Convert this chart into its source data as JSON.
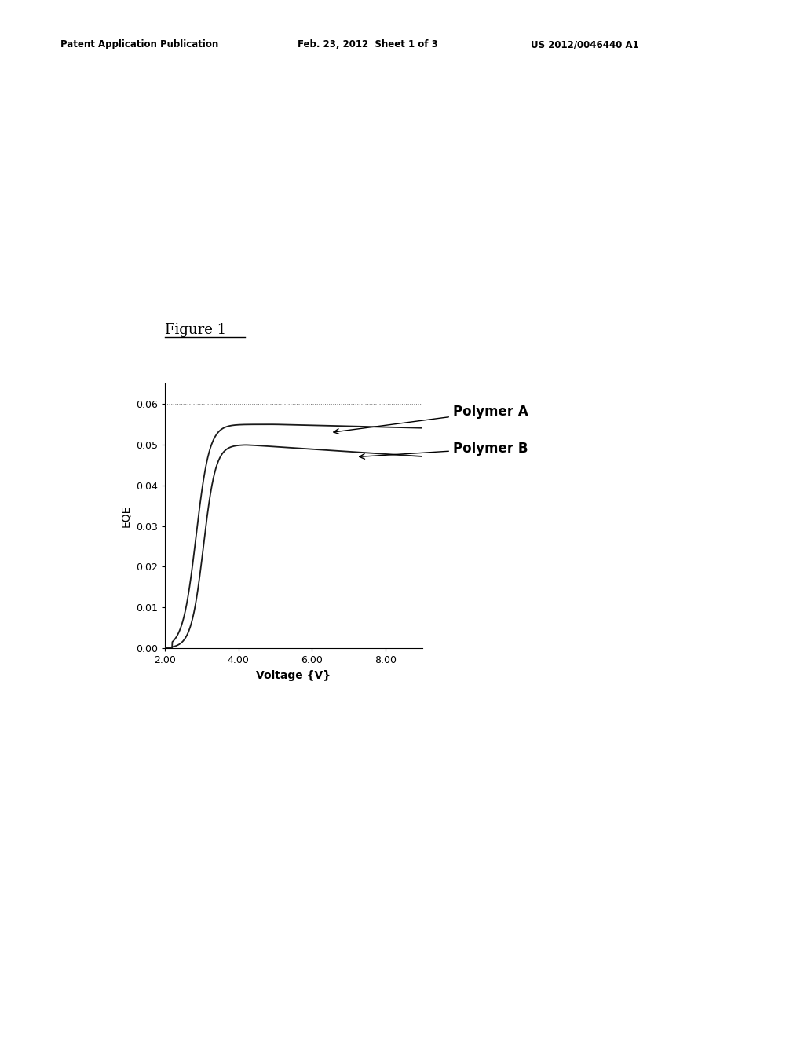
{
  "title": "Figure 1",
  "xlabel": "Voltage {V}",
  "ylabel": "EQE",
  "xlim": [
    2.0,
    9.0
  ],
  "ylim": [
    0.0,
    0.065
  ],
  "xticks": [
    2.0,
    4.0,
    6.0,
    8.0
  ],
  "xtick_labels": [
    "2.00",
    "4.00",
    "6.00",
    "8.00"
  ],
  "yticks": [
    0.0,
    0.01,
    0.02,
    0.03,
    0.04,
    0.05,
    0.06
  ],
  "ytick_labels": [
    "0.00",
    "0.01",
    "0.02",
    "0.03",
    "0.04",
    "0.05",
    "0.06"
  ],
  "curve_A_label": "Polymer A",
  "curve_B_label": "Polymer B",
  "background_color": "#ffffff",
  "curve_color": "#1a1a1a",
  "header_left": "Patent Application Publication",
  "header_mid": "Feb. 23, 2012  Sheet 1 of 3",
  "header_right": "US 2012/0046440 A1",
  "dotted_line_y": 0.06,
  "dotted_line_x_end": 8.8
}
